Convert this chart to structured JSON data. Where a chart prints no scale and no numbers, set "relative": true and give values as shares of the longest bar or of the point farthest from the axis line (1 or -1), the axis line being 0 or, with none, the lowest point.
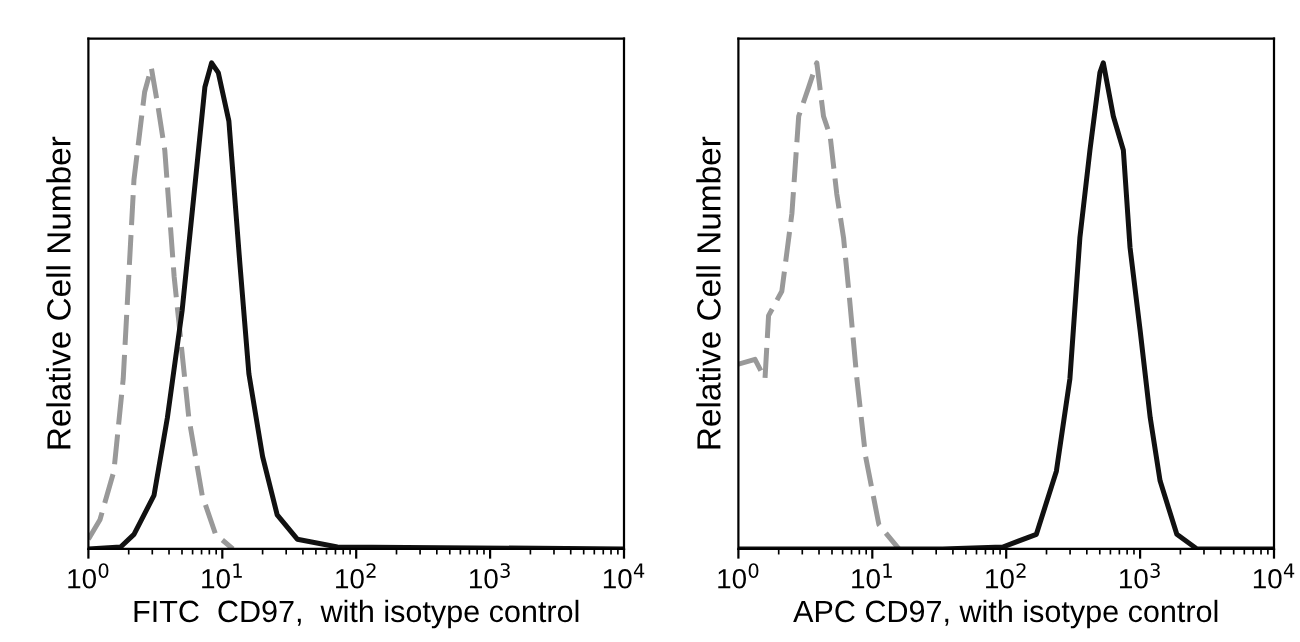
{
  "chart_data": [
    {
      "type": "line",
      "relative": true,
      "xlabel": "FITC  CD97,  with isotype control",
      "ylabel": "Relative Cell Number",
      "log": "x",
      "xlim": [
        1,
        10000
      ],
      "xticks": [
        {
          "value": 1,
          "label": "10$^{0}$"
        },
        {
          "value": 10,
          "label": "10$^{1}$"
        },
        {
          "value": 100,
          "label": "10$^{2}$"
        },
        {
          "value": 1000,
          "label": "10$^{3}$"
        },
        {
          "value": 10000,
          "label": "10$^{4}$"
        }
      ],
      "tick_labels": "x",
      "grid": false,
      "series": [
        {
          "color": "#999999",
          "line_style": "dashed",
          "x": [
            1.0,
            1.22,
            1.55,
            1.82,
            2.19,
            2.63,
            2.95,
            3.31,
            3.72,
            4.37,
            5.62,
            7.08,
            8.91,
            12.0
          ],
          "values": [
            0.02,
            0.06,
            0.16,
            0.35,
            0.76,
            0.94,
            0.99,
            0.91,
            0.82,
            0.56,
            0.27,
            0.11,
            0.03,
            0
          ]
        },
        {
          "color": "#111111",
          "line_style": "solid",
          "x": [
            1.0,
            1.74,
            2.19,
            3.09,
            3.89,
            5.01,
            6.31,
            7.41,
            8.32,
            9.33,
            11.2,
            13.5,
            15.8,
            20.0,
            25.7,
            36.3,
            72.4,
            10000
          ],
          "values": [
            0,
            0.004,
            0.03,
            0.11,
            0.27,
            0.49,
            0.76,
            0.95,
            1.0,
            0.98,
            0.88,
            0.59,
            0.36,
            0.19,
            0.07,
            0.02,
            0.004,
            0
          ]
        }
      ]
    },
    {
      "type": "line",
      "relative": true,
      "xlabel": "APC CD97, with isotype control",
      "ylabel": "Relative Cell Number",
      "log": "x",
      "xlim": [
        1,
        10000
      ],
      "xticks": [
        {
          "value": 1,
          "label": "10$^{0}$"
        },
        {
          "value": 10,
          "label": "10$^{1}$"
        },
        {
          "value": 100,
          "label": "10$^{2}$"
        },
        {
          "value": 1000,
          "label": "10$^{3}$"
        },
        {
          "value": 10000,
          "label": "10$^{4}$"
        }
      ],
      "tick_labels": "x",
      "grid": false,
      "series": [
        {
          "color": "#999999",
          "line_style": "dashed",
          "x": [
            1.0,
            1.33,
            1.58,
            1.68,
            2.11,
            2.51,
            2.82,
            3.35,
            3.85,
            4.32,
            4.84,
            5.43,
            6.1,
            6.68,
            7.67,
            8.91,
            11.2,
            15.8
          ],
          "values": [
            0.38,
            0.39,
            0.35,
            0.48,
            0.53,
            0.69,
            0.89,
            0.95,
            1.0,
            0.89,
            0.85,
            0.73,
            0.64,
            0.53,
            0.35,
            0.19,
            0.05,
            0
          ]
        },
        {
          "color": "#111111",
          "line_style": "solid",
          "x": [
            1.0,
            33.5,
            94.4,
            168,
            237,
            299,
            355,
            422,
            501,
            531,
            631,
            750,
            841,
            1000,
            1190,
            1410,
            1880,
            2660,
            10000
          ],
          "values": [
            0,
            0,
            0.004,
            0.03,
            0.16,
            0.35,
            0.64,
            0.82,
            0.98,
            1.0,
            0.89,
            0.82,
            0.62,
            0.45,
            0.27,
            0.14,
            0.03,
            0,
            0
          ]
        }
      ]
    }
  ]
}
